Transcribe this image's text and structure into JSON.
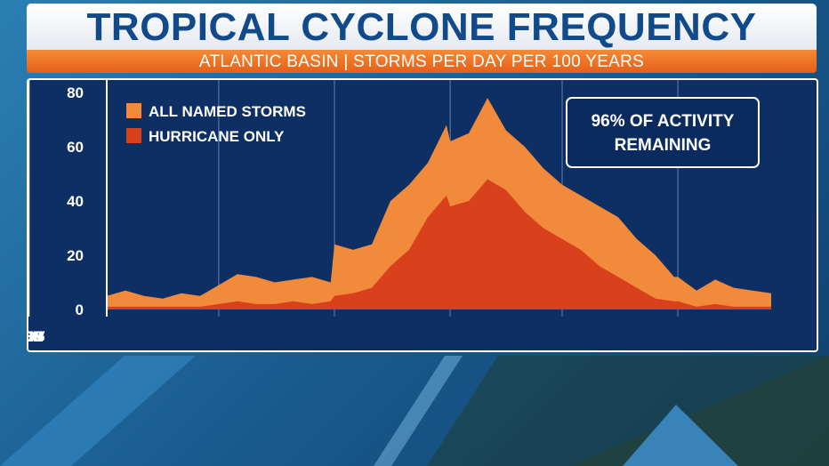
{
  "header": {
    "title": "TROPICAL CYCLONE FREQUENCY",
    "subtitle": "ATLANTIC BASIN | STORMS PER DAY PER 100 YEARS"
  },
  "callout": {
    "line1": "96% OF ACTIVITY",
    "line2": "REMAINING"
  },
  "colors": {
    "named_storms": "#f28a3c",
    "hurricanes": "#d9401c",
    "plot_bg": "#0e2f63",
    "elapsed_bg": "#0b2a5e",
    "future_bg": "#40628e",
    "title_text": "#114a8a",
    "accent_orange": "#e8631c"
  },
  "chart_data": {
    "type": "area",
    "title": "TROPICAL CYCLONE FREQUENCY",
    "subtitle": "ATLANTIC BASIN | STORMS PER DAY PER 100 YEARS",
    "x_categories": [
      "JUN",
      "JUL",
      "AUG",
      "SEP",
      "OCT",
      "NOV"
    ],
    "ylim": [
      0,
      80
    ],
    "yticks": [
      0,
      20,
      40,
      60,
      80
    ],
    "current_date_marker": "JUN",
    "legend_position": "top-left",
    "annotation": "96% OF ACTIVITY REMAINING",
    "series": [
      {
        "name": "ALL NAMED STORMS",
        "color": "#f28a3c",
        "points": [
          [
            "Jun 1",
            5
          ],
          [
            "Jun 6",
            7
          ],
          [
            "Jun 11",
            5
          ],
          [
            "Jun 16",
            4
          ],
          [
            "Jun 21",
            6
          ],
          [
            "Jun 26",
            5
          ],
          [
            "Jul 1",
            9
          ],
          [
            "Jul 6",
            13
          ],
          [
            "Jul 11",
            12
          ],
          [
            "Jul 16",
            10
          ],
          [
            "Jul 21",
            11
          ],
          [
            "Jul 26",
            12
          ],
          [
            "Jul 31",
            10
          ],
          [
            "Aug 1",
            24
          ],
          [
            "Aug 6",
            22
          ],
          [
            "Aug 11",
            24
          ],
          [
            "Aug 16",
            40
          ],
          [
            "Aug 21",
            46
          ],
          [
            "Aug 26",
            54
          ],
          [
            "Aug 31",
            68
          ],
          [
            "Sep 1",
            62
          ],
          [
            "Sep 6",
            65
          ],
          [
            "Sep 11",
            78
          ],
          [
            "Sep 16",
            66
          ],
          [
            "Sep 21",
            60
          ],
          [
            "Sep 26",
            52
          ],
          [
            "Oct 1",
            46
          ],
          [
            "Oct 6",
            42
          ],
          [
            "Oct 11",
            38
          ],
          [
            "Oct 16",
            34
          ],
          [
            "Oct 21",
            26
          ],
          [
            "Oct 26",
            20
          ],
          [
            "Oct 31",
            12
          ],
          [
            "Nov 1",
            12
          ],
          [
            "Nov 6",
            7
          ],
          [
            "Nov 11",
            11
          ],
          [
            "Nov 16",
            8
          ],
          [
            "Nov 21",
            7
          ],
          [
            "Nov 26",
            6
          ]
        ]
      },
      {
        "name": "HURRICANE ONLY",
        "color": "#d9401c",
        "points": [
          [
            "Jun 1",
            1
          ],
          [
            "Jun 6",
            1
          ],
          [
            "Jun 11",
            1
          ],
          [
            "Jun 16",
            1
          ],
          [
            "Jun 21",
            1
          ],
          [
            "Jun 26",
            1
          ],
          [
            "Jul 1",
            2
          ],
          [
            "Jul 6",
            3
          ],
          [
            "Jul 11",
            2
          ],
          [
            "Jul 16",
            2
          ],
          [
            "Jul 21",
            3
          ],
          [
            "Jul 26",
            2
          ],
          [
            "Jul 31",
            3
          ],
          [
            "Aug 1",
            5
          ],
          [
            "Aug 6",
            6
          ],
          [
            "Aug 11",
            8
          ],
          [
            "Aug 16",
            16
          ],
          [
            "Aug 21",
            22
          ],
          [
            "Aug 26",
            34
          ],
          [
            "Aug 31",
            42
          ],
          [
            "Sep 1",
            38
          ],
          [
            "Sep 6",
            40
          ],
          [
            "Sep 11",
            48
          ],
          [
            "Sep 16",
            44
          ],
          [
            "Sep 21",
            36
          ],
          [
            "Sep 26",
            30
          ],
          [
            "Oct 1",
            26
          ],
          [
            "Oct 6",
            22
          ],
          [
            "Oct 11",
            16
          ],
          [
            "Oct 16",
            12
          ],
          [
            "Oct 21",
            8
          ],
          [
            "Oct 26",
            4
          ],
          [
            "Oct 31",
            3
          ],
          [
            "Nov 1",
            3
          ],
          [
            "Nov 6",
            1
          ],
          [
            "Nov 11",
            2
          ],
          [
            "Nov 16",
            1
          ],
          [
            "Nov 21",
            1
          ],
          [
            "Nov 26",
            1
          ]
        ]
      }
    ]
  }
}
